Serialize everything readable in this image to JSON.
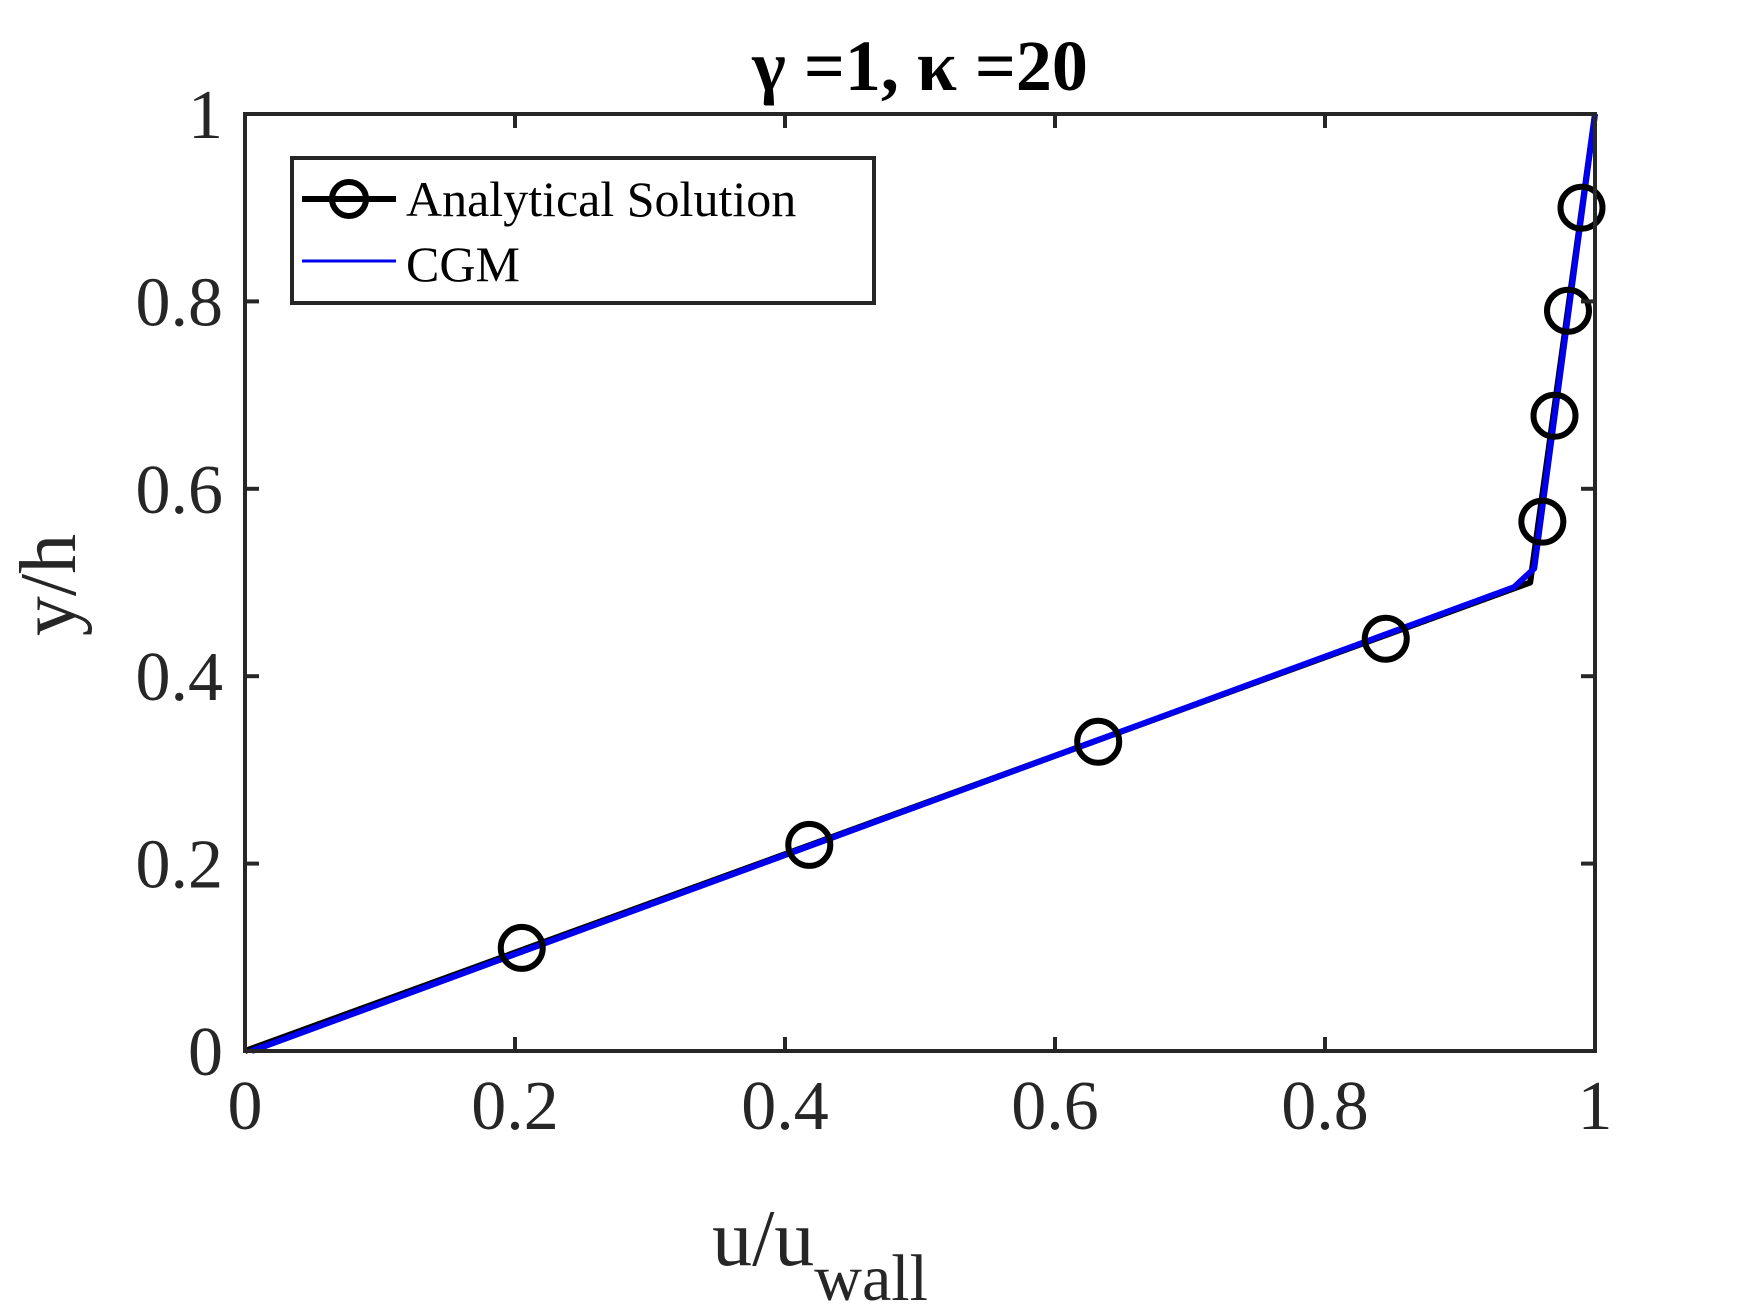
{
  "chart_data": {
    "type": "line",
    "title": "γ =1, κ =20",
    "xlabel": "u/u",
    "xlabel_subscript": "wall",
    "ylabel": "y/h",
    "xlim": [
      0,
      1
    ],
    "ylim": [
      0,
      1
    ],
    "xticks": [
      0,
      0.2,
      0.4,
      0.6,
      0.8,
      1
    ],
    "xtick_labels": [
      "0",
      "0.2",
      "0.4",
      "0.6",
      "0.8",
      "1"
    ],
    "yticks": [
      0,
      0.2,
      0.4,
      0.6,
      0.8,
      1
    ],
    "ytick_labels": [
      "0",
      "0.2",
      "0.4",
      "0.6",
      "0.8",
      "1"
    ],
    "grid": false,
    "legend_position": "top-left",
    "series": [
      {
        "name": "Analytical Solution",
        "color": "#000000",
        "marker": "circle",
        "line": [
          {
            "x": 0,
            "y": 0
          },
          {
            "x": 0.952,
            "y": 0.5
          },
          {
            "x": 1,
            "y": 1
          }
        ],
        "markers": [
          {
            "x": 0.205,
            "y": 0.11
          },
          {
            "x": 0.418,
            "y": 0.22
          },
          {
            "x": 0.632,
            "y": 0.33
          },
          {
            "x": 0.845,
            "y": 0.44
          },
          {
            "x": 0.961,
            "y": 0.565
          },
          {
            "x": 0.97,
            "y": 0.678
          },
          {
            "x": 0.98,
            "y": 0.79
          },
          {
            "x": 0.99,
            "y": 0.9
          }
        ]
      },
      {
        "name": "CGM",
        "color": "#0000ee",
        "marker": "none",
        "line": [
          {
            "x": 0.005,
            "y": 0
          },
          {
            "x": 0.94,
            "y": 0.495
          },
          {
            "x": 0.955,
            "y": 0.515
          },
          {
            "x": 1,
            "y": 1
          }
        ]
      }
    ]
  }
}
